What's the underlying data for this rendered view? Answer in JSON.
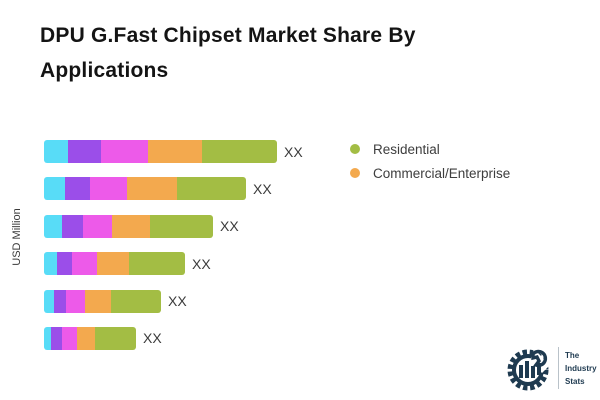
{
  "title": "DPU G.Fast Chipset Market Share By Applications",
  "ylabel": "USD Million",
  "legend": [
    {
      "label": "Residential",
      "color": "#a3bd44"
    },
    {
      "label": "Commercial/Enterprise",
      "color": "#f3a94e"
    }
  ],
  "chart_data": {
    "type": "bar",
    "orientation": "horizontal-stacked",
    "title": "DPU G.Fast Chipset Market Share By Applications",
    "ylabel": "USD Million",
    "grid": false,
    "legend_position": "right",
    "value_labels": [
      "XX",
      "XX",
      "XX",
      "XX",
      "XX",
      "XX"
    ],
    "series": [
      {
        "name": "",
        "color": "#58dcf7",
        "values": [
          24,
          21,
          18,
          13,
          10,
          7
        ]
      },
      {
        "name": "",
        "color": "#9b4ee9",
        "values": [
          33,
          25,
          21,
          15,
          12,
          11
        ]
      },
      {
        "name": "",
        "color": "#ed5ae9",
        "values": [
          47,
          37,
          29,
          25,
          19,
          15
        ]
      },
      {
        "name": "Commercial/Enterprise",
        "color": "#f3a94e",
        "values": [
          54,
          50,
          38,
          32,
          26,
          18
        ]
      },
      {
        "name": "Residential",
        "color": "#a3bd44",
        "values": [
          75,
          69,
          63,
          56,
          50,
          41
        ]
      }
    ]
  },
  "logo": {
    "line1": "The",
    "line2": "Industry",
    "line3": "Stats"
  }
}
